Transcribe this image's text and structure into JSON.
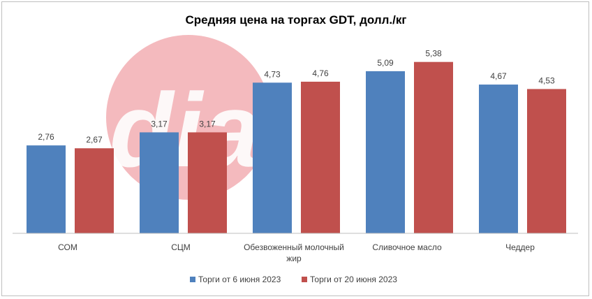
{
  "colors": {
    "series1": "#4F81BD",
    "series2": "#C0504D",
    "watermark": "#F0A3A8",
    "axis": "#bfbfbf"
  },
  "watermark": {
    "text": "dia",
    "icon": "dia-logo-watermark"
  },
  "chart_data": {
    "type": "bar",
    "title": "Средняя цена на торгах GDT, долл./кг",
    "categories": [
      [
        "СОМ"
      ],
      [
        "СЦМ"
      ],
      [
        "Обезвоженный молочный",
        "жир"
      ],
      [
        "Сливочное масло"
      ],
      [
        "Чеддер"
      ]
    ],
    "series": [
      {
        "name": "Торги от 6 июня 2023",
        "values": [
          2.76,
          3.17,
          4.73,
          5.09,
          4.67
        ],
        "labels": [
          "2,76",
          "3,17",
          "4,73",
          "5,09",
          "4,67"
        ]
      },
      {
        "name": "Торги от 20 июня 2023",
        "values": [
          2.67,
          3.17,
          4.76,
          5.38,
          4.53
        ],
        "labels": [
          "2,67",
          "3,17",
          "4,76",
          "5,38",
          "4,53"
        ]
      }
    ],
    "ylim": [
      0,
      6
    ],
    "grid": false,
    "legend": "bottom"
  }
}
